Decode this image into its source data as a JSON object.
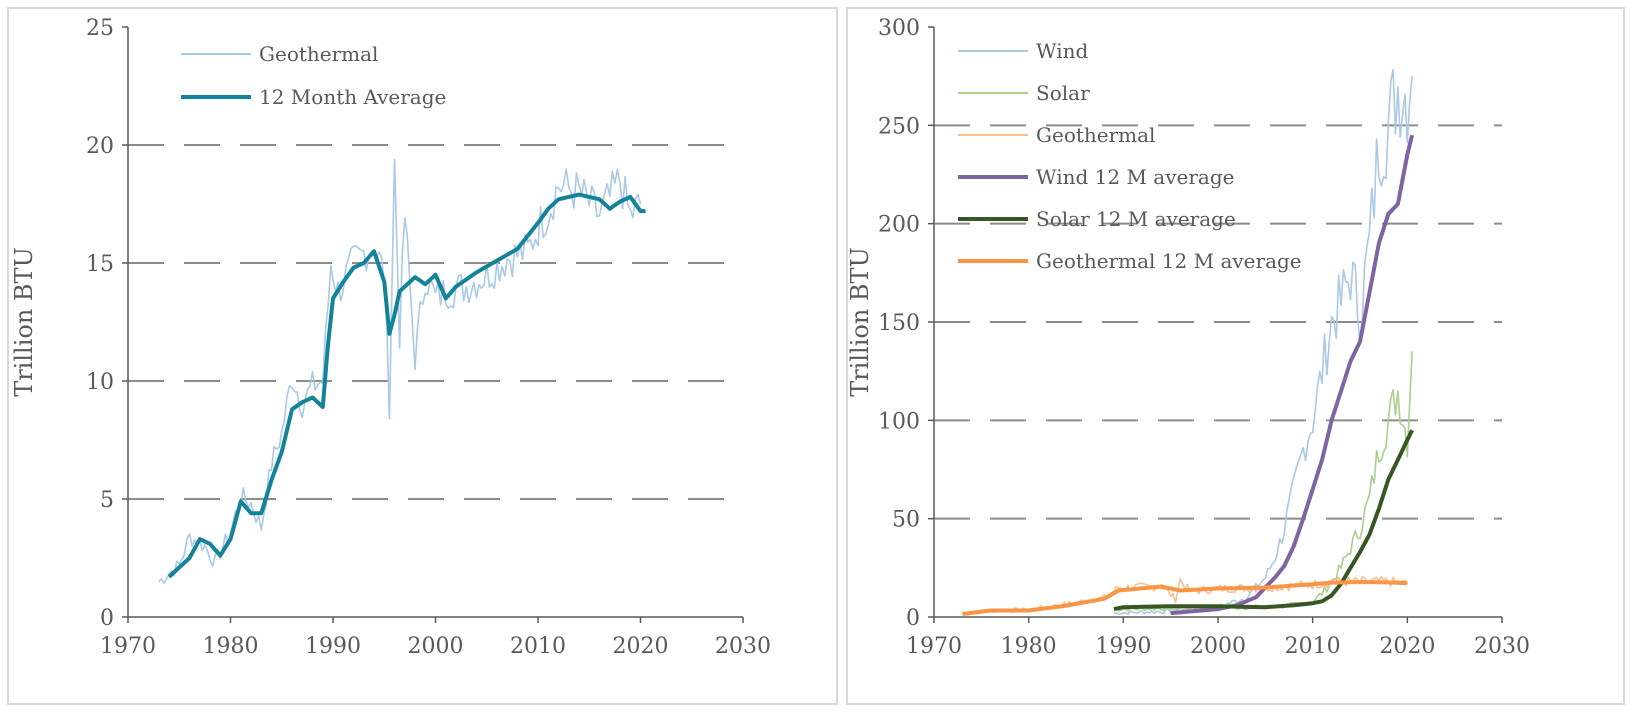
{
  "chart_data": [
    {
      "type": "line",
      "ylabel": "Trillion BTU",
      "xlim": [
        1970,
        2030
      ],
      "ylim": [
        0,
        25
      ],
      "xticks": [
        "1970",
        "1980",
        "1990",
        "2000",
        "2010",
        "2020",
        "2030"
      ],
      "yticks": [
        "0",
        "5",
        "10",
        "15",
        "20",
        "25"
      ],
      "grid": "horizontal dashed",
      "legend_position": "top-left",
      "series": [
        {
          "name": "Geothermal",
          "color": "#a9c9e6",
          "style": "thin-monthly",
          "x": [
            1973.0,
            1975.0,
            1976.0,
            1977.5,
            1978.5,
            1980.0,
            1981.0,
            1982.0,
            1983.0,
            1984.0,
            1985.0,
            1986.0,
            1987.0,
            1988.0,
            1989.0,
            1989.8,
            1990.5,
            1992.0,
            1994.0,
            1995.0,
            1995.5,
            1996.0,
            1996.5,
            1997.0,
            1998.0,
            1999.0,
            2000.0,
            2001.0,
            2003.0,
            2005.0,
            2007.0,
            2009.0,
            2010.0,
            2011.0,
            2012.0,
            2014.0,
            2016.0,
            2018.0,
            2019.0,
            2020.0
          ],
          "y": [
            1.5,
            2.2,
            3.4,
            3.0,
            2.3,
            3.6,
            5.1,
            4.8,
            3.8,
            6.5,
            7.8,
            10.2,
            9.0,
            9.8,
            10.0,
            15.0,
            13.8,
            15.0,
            15.8,
            14.5,
            9.0,
            19.2,
            12.0,
            17.0,
            11.0,
            14.5,
            13.5,
            13.8,
            14.0,
            14.5,
            15.2,
            15.5,
            16.5,
            17.2,
            18.3,
            18.0,
            17.0,
            18.5,
            17.0,
            17.5
          ]
        },
        {
          "name": "12 Month Average",
          "color": "#13839a",
          "style": "thick",
          "x": [
            1974.0,
            1975.0,
            1976.0,
            1977.0,
            1978.0,
            1979.0,
            1980.0,
            1981.0,
            1982.0,
            1983.0,
            1984.0,
            1985.0,
            1986.0,
            1987.0,
            1988.0,
            1989.0,
            1989.5,
            1990.0,
            1991.0,
            1992.0,
            1993.0,
            1994.0,
            1995.0,
            1995.5,
            1996.0,
            1996.5,
            1997.0,
            1998.0,
            1999.0,
            2000.0,
            2001.0,
            2002.0,
            2004.0,
            2006.0,
            2008.0,
            2010.0,
            2011.0,
            2012.0,
            2014.0,
            2016.0,
            2017.0,
            2018.0,
            2019.0,
            2020.0,
            2020.5
          ],
          "y": [
            1.7,
            2.1,
            2.5,
            3.3,
            3.1,
            2.6,
            3.3,
            4.9,
            4.4,
            4.4,
            5.8,
            7.0,
            8.8,
            9.1,
            9.3,
            8.9,
            11.5,
            13.5,
            14.2,
            14.8,
            15.0,
            15.5,
            14.2,
            12.0,
            12.8,
            13.8,
            14.0,
            14.4,
            14.1,
            14.5,
            13.5,
            14.0,
            14.6,
            15.1,
            15.6,
            16.7,
            17.3,
            17.7,
            17.9,
            17.7,
            17.3,
            17.6,
            17.8,
            17.2,
            17.2
          ]
        }
      ]
    },
    {
      "type": "line",
      "ylabel": "Trillion BTU",
      "xlim": [
        1970,
        2030
      ],
      "ylim": [
        0,
        300
      ],
      "xticks": [
        "1970",
        "1980",
        "1990",
        "2000",
        "2010",
        "2020",
        "2030"
      ],
      "yticks": [
        "0",
        "50",
        "100",
        "150",
        "200",
        "250",
        "300"
      ],
      "grid": "horizontal dashed",
      "legend_position": "top-left",
      "series": [
        {
          "name": "Wind",
          "color": "#a9c9e6",
          "style": "thin-monthly",
          "x": [
            1989.0,
            1995.0,
            2000.0,
            2003.0,
            2005.0,
            2006.0,
            2007.0,
            2008.0,
            2009.0,
            2010.0,
            2011.0,
            2012.0,
            2013.0,
            2014.0,
            2015.0,
            2016.0,
            2017.0,
            2018.0,
            2019.0,
            2020.0,
            2020.5
          ],
          "y": [
            2,
            3,
            5,
            10,
            20,
            30,
            45,
            65,
            85,
            100,
            125,
            150,
            160,
            175,
            155,
            190,
            240,
            250,
            270,
            265,
            275
          ]
        },
        {
          "name": "Solar",
          "color": "#a8d08d",
          "style": "thin-monthly",
          "x": [
            1989.0,
            2000.0,
            2005.0,
            2008.0,
            2010.0,
            2011.0,
            2012.0,
            2013.0,
            2014.0,
            2015.0,
            2016.0,
            2017.0,
            2018.0,
            2019.0,
            2020.0,
            2020.5
          ],
          "y": [
            4,
            5,
            5,
            6,
            8,
            12,
            18,
            25,
            35,
            45,
            60,
            85,
            100,
            115,
            90,
            135
          ]
        },
        {
          "name": "Geothermal",
          "color": "#fac090",
          "style": "thin-monthly",
          "x": [
            1973.0,
            1976.0,
            1980.0,
            1984.0,
            1988.0,
            1989.5,
            1992.0,
            1994.0,
            1995.5,
            1996.0,
            1997.0,
            2000.0,
            2005.0,
            2010.0,
            2012.0,
            2015.0,
            2018.0,
            2020.0
          ],
          "y": [
            1.5,
            3.3,
            3.6,
            6.5,
            9.8,
            15,
            15,
            15.8,
            9,
            19,
            13,
            14.5,
            15,
            16.5,
            18,
            18,
            18,
            17
          ]
        },
        {
          "name": "Wind 12 M average",
          "color": "#8064a2",
          "style": "thick",
          "x": [
            1995.0,
            2000.0,
            2002.0,
            2004.0,
            2006.0,
            2007.0,
            2008.0,
            2009.0,
            2010.0,
            2011.0,
            2012.0,
            2013.0,
            2014.0,
            2015.0,
            2016.0,
            2017.0,
            2018.0,
            2019.0,
            2020.0,
            2020.5
          ],
          "y": [
            2,
            4,
            6,
            10,
            20,
            26,
            36,
            50,
            65,
            80,
            100,
            115,
            130,
            140,
            165,
            190,
            205,
            210,
            235,
            245
          ]
        },
        {
          "name": "Solar 12 M average",
          "color": "#375623",
          "style": "thick",
          "x": [
            1989.0,
            1990.0,
            1995.0,
            2000.0,
            2005.0,
            2008.0,
            2010.0,
            2011.0,
            2012.0,
            2013.0,
            2014.0,
            2015.0,
            2016.0,
            2017.0,
            2018.0,
            2019.0,
            2020.0,
            2020.5
          ],
          "y": [
            4,
            5,
            5.5,
            5.5,
            5,
            6,
            7,
            8,
            11,
            17,
            25,
            33,
            42,
            55,
            70,
            80,
            90,
            95
          ]
        },
        {
          "name": "Geothermal 12 M average",
          "color": "#f79646",
          "style": "thick",
          "x": [
            1973.0,
            1976.0,
            1980.0,
            1984.0,
            1988.0,
            1989.5,
            1994.0,
            1996.0,
            2000.0,
            2005.0,
            2010.0,
            2012.0,
            2015.0,
            2018.0,
            2020.0
          ],
          "y": [
            1.5,
            3.3,
            3.3,
            5.8,
            9.3,
            13.5,
            15.5,
            13.5,
            14.5,
            15.0,
            16.7,
            17.5,
            17.8,
            17.6,
            17.2
          ]
        }
      ]
    }
  ]
}
